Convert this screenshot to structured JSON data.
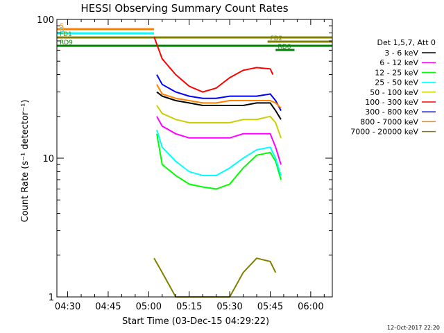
{
  "chart_data": {
    "type": "line",
    "title": "HESSI Observing Summary Count Rates",
    "xlabel": "Start Time (03-Dec-15 04:29:22)",
    "ylabel": "Count Rate (s⁻¹ detector⁻¹)",
    "y_scale": "log",
    "ylim": [
      1,
      100
    ],
    "xlim": [
      "04:26",
      "06:08"
    ],
    "x_ticks": [
      "04:30",
      "04:45",
      "05:00",
      "05:15",
      "05:30",
      "05:45",
      "06:00"
    ],
    "y_ticks": [
      "1",
      "10",
      "100"
    ],
    "grid": false,
    "legend_title": "Det 1,5,7, Att 0",
    "legend_position": "right",
    "timestamp": "12-Oct-2017 22:20",
    "series": [
      {
        "name": "3 - 6 keV",
        "color": "#000000",
        "x": [
          "05:03",
          "05:05",
          "05:10",
          "05:15",
          "05:20",
          "05:25",
          "05:30",
          "05:35",
          "05:40",
          "05:45",
          "05:47",
          "05:49"
        ],
        "values": [
          30,
          28,
          26,
          25,
          24,
          24,
          24,
          24,
          25,
          25,
          22,
          19
        ]
      },
      {
        "name": "6 - 12 keV",
        "color": "#ff00ff",
        "x": [
          "05:03",
          "05:05",
          "05:10",
          "05:15",
          "05:20",
          "05:25",
          "05:30",
          "05:35",
          "05:40",
          "05:45",
          "05:47",
          "05:49"
        ],
        "values": [
          20,
          17,
          15,
          14,
          14,
          14,
          14,
          15,
          15,
          15,
          12,
          9
        ]
      },
      {
        "name": "12 - 25 keV",
        "color": "#00ff00",
        "x": [
          "05:03",
          "05:05",
          "05:10",
          "05:15",
          "05:20",
          "05:25",
          "05:30",
          "05:35",
          "05:40",
          "05:45",
          "05:47",
          "05:49"
        ],
        "values": [
          15,
          9,
          7.5,
          6.5,
          6.2,
          6,
          6.5,
          8.5,
          10.5,
          11,
          9.5,
          7
        ]
      },
      {
        "name": "25 - 50 keV",
        "color": "#00ffff",
        "x": [
          "05:03",
          "05:05",
          "05:10",
          "05:15",
          "05:20",
          "05:25",
          "05:30",
          "05:35",
          "05:40",
          "05:45",
          "05:47",
          "05:49"
        ],
        "values": [
          16,
          12,
          9.5,
          8,
          7.5,
          7.5,
          8.5,
          10,
          11.5,
          12,
          10,
          7.5
        ]
      },
      {
        "name": "50 - 100 keV",
        "color": "#cccc00",
        "x": [
          "05:03",
          "05:05",
          "05:10",
          "05:15",
          "05:20",
          "05:25",
          "05:30",
          "05:35",
          "05:40",
          "05:45",
          "05:47",
          "05:49"
        ],
        "values": [
          24,
          21,
          19,
          18,
          18,
          18,
          18,
          19,
          19,
          20,
          18,
          14
        ]
      },
      {
        "name": "100 - 300 keV",
        "color": "#ff0000",
        "x": [
          "05:02",
          "05:05",
          "05:10",
          "05:15",
          "05:20",
          "05:25",
          "05:30",
          "05:35",
          "05:40",
          "05:45",
          "05:46"
        ],
        "values": [
          75,
          52,
          40,
          33,
          30,
          32,
          38,
          43,
          45,
          44,
          40
        ]
      },
      {
        "name": "300 - 800 keV",
        "color": "#0000ff",
        "x": [
          "05:03",
          "05:05",
          "05:10",
          "05:15",
          "05:20",
          "05:25",
          "05:30",
          "05:35",
          "05:40",
          "05:45",
          "05:47",
          "05:49"
        ],
        "values": [
          40,
          34,
          30,
          28,
          27,
          27,
          28,
          28,
          28,
          29,
          26,
          22
        ]
      },
      {
        "name": "800 - 7000 keV",
        "color": "#ff8000",
        "x": [
          "05:03",
          "05:05",
          "05:10",
          "05:15",
          "05:20",
          "05:25",
          "05:30",
          "05:35",
          "05:40",
          "05:45",
          "05:47",
          "05:49"
        ],
        "values": [
          34,
          29,
          27,
          26,
          25,
          25,
          26,
          26,
          26,
          26,
          25,
          23
        ]
      },
      {
        "name": "7000 - 20000 keV",
        "color": "#808000",
        "x": [
          "05:02",
          "05:05",
          "05:10",
          "05:15",
          "05:20",
          "05:25",
          "05:30",
          "05:35",
          "05:40",
          "05:45",
          "05:47"
        ],
        "values": [
          1.9,
          1.5,
          1,
          1,
          1,
          1,
          1,
          1.5,
          1.9,
          1.8,
          1.5
        ]
      }
    ],
    "flags": [
      {
        "label": "S",
        "color": "#ff8000",
        "start": "04:26",
        "end": "05:02"
      },
      {
        "label": "N",
        "color": "#00ffff",
        "start": "04:26",
        "end": "05:02"
      },
      {
        "label": "FD1",
        "color": "#808000",
        "start": "04:26",
        "end": "06:08"
      },
      {
        "label": "FD2",
        "color": "#808000",
        "start": "05:44",
        "end": "06:08"
      },
      {
        "label": "RD9",
        "color": "#008000",
        "start": "04:26",
        "end": "06:08"
      },
      {
        "label": "RD6",
        "color": "#008000",
        "start": "05:47",
        "end": "05:54"
      }
    ]
  }
}
